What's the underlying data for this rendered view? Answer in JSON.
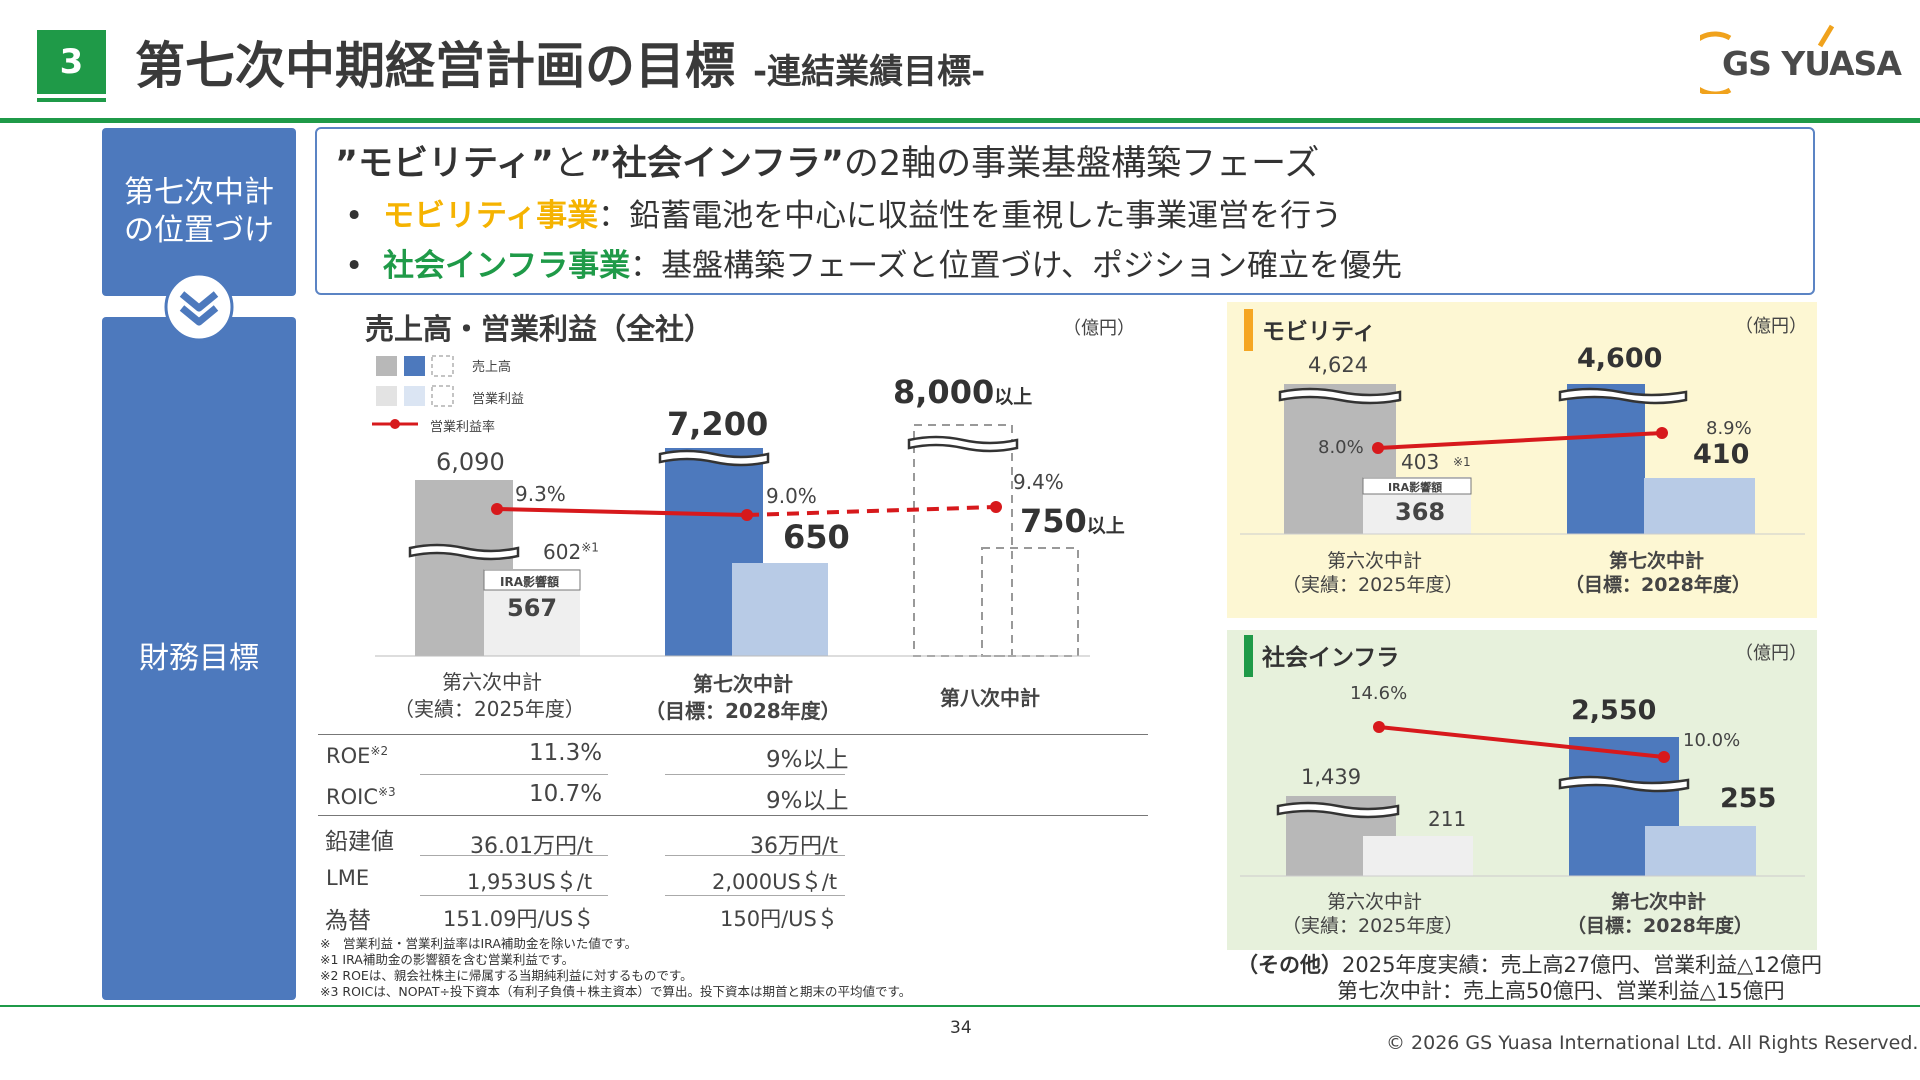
{
  "header": {
    "slide_number": "3",
    "title": "第七次中期経営計画の目標",
    "subtitle": "-連結業績目標-",
    "logo_text": "GS YUASA"
  },
  "sidebar": {
    "positioning_label": "第七次中計\nの位置づけ",
    "financial_label": "財務目標"
  },
  "positioning": {
    "title_q1": "”モビリティ”",
    "title_and": "と",
    "title_q2": "”社会インフラ”",
    "title_rest": "の2軸の事業基盤構築フェーズ",
    "bullet1_head": "モビリティ事業",
    "bullet1_body": "：鉛蓄電池を中心に収益性を重視した事業運営を行う",
    "bullet2_head": "社会インフラ事業",
    "bullet2_body": "：基盤構築フェーズと位置づけ、ポジション確立を優先"
  },
  "main_chart": {
    "title": "売上高・営業利益（全社）",
    "unit": "（億円）",
    "legend_sales": "売上高",
    "legend_op": "営業利益",
    "legend_margin": "営業利益率",
    "sixth_sales": "6,090",
    "sixth_margin": "9.3%",
    "sixth_op": "602",
    "sixth_op_note": "※1",
    "ira_label": "IRA影響額",
    "sixth_op_ex": "567",
    "seventh_sales": "7,200",
    "seventh_margin": "9.0%",
    "seventh_op": "650",
    "eighth_sales": "8,000",
    "eighth_sales_suffix": "以上",
    "eighth_margin": "9.4%",
    "eighth_op": "750",
    "eighth_op_suffix": "以上",
    "cat1_line1": "第六次中計",
    "cat1_line2": "（実績：2025年度）",
    "cat2_line1": "第七次中計",
    "cat2_line2": "（目標：2028年度）",
    "cat3_line1": "第八次中計"
  },
  "chart_data": [
    {
      "type": "bar",
      "title": "売上高・営業利益（全社）",
      "categories": [
        "第六次中計（実績：2025年度）",
        "第七次中計（目標：2028年度）",
        "第八次中計"
      ],
      "series": [
        {
          "name": "売上高",
          "values": [
            6090,
            7200,
            8000
          ]
        },
        {
          "name": "営業利益",
          "values": [
            602,
            650,
            750
          ]
        },
        {
          "name": "営業利益率",
          "values": [
            9.3,
            9.0,
            9.4
          ]
        }
      ],
      "unit": "（億円）"
    },
    {
      "type": "bar",
      "title": "モビリティ",
      "categories": [
        "第六次中計（実績：2025年度）",
        "第七次中計（目標：2028年度）"
      ],
      "series": [
        {
          "name": "売上高",
          "values": [
            4624,
            4600
          ]
        },
        {
          "name": "営業利益",
          "values": [
            403,
            410
          ]
        },
        {
          "name": "営業利益率",
          "values": [
            8.0,
            8.9
          ]
        }
      ],
      "unit": "（億円）"
    },
    {
      "type": "bar",
      "title": "社会インフラ",
      "categories": [
        "第六次中計（実績：2025年度）",
        "第七次中計（目標：2028年度）"
      ],
      "series": [
        {
          "name": "売上高",
          "values": [
            1439,
            2550
          ]
        },
        {
          "name": "営業利益",
          "values": [
            211,
            255
          ]
        },
        {
          "name": "営業利益率",
          "values": [
            14.6,
            10.0
          ]
        }
      ],
      "unit": "（億円）"
    }
  ],
  "metrics_table": {
    "rows": [
      {
        "label": "ROE",
        "note": "※2",
        "sixth": "11.3%",
        "seventh": "9%以上"
      },
      {
        "label": "ROIC",
        "note": "※3",
        "sixth": "10.7%",
        "seventh": "9%以上"
      },
      {
        "label": "鉛建値",
        "note": "",
        "sixth": "36.01万円/t",
        "seventh": "36万円/t"
      },
      {
        "label": "LME",
        "note": "",
        "sixth": "1,953US＄/t",
        "seventh": "2,000US＄/t"
      },
      {
        "label": "為替",
        "note": "",
        "sixth": "151.09円/US＄",
        "seventh": "150円/US＄"
      }
    ]
  },
  "footnotes": {
    "n0": "※　営業利益・営業利益率はIRA補助金を除いた値です。",
    "n1": "※1 IRA補助金の影響額を含む営業利益です。",
    "n2": "※2 ROEは、親会社株主に帰属する当期純利益に対するものです。",
    "n3": "※3 ROICは、NOPAT÷投下資本（有利子負債＋株主資本）で算出。投下資本は期首と期末の平均値です。"
  },
  "mobility": {
    "title": "モビリティ",
    "unit": "（億円）",
    "sixth_sales": "4,624",
    "sixth_margin": "8.0%",
    "sixth_op": "403",
    "sixth_op_note": "※1",
    "ira_label": "IRA影響額",
    "sixth_op_ex": "368",
    "seventh_sales": "4,600",
    "seventh_margin": "8.9%",
    "seventh_op": "410",
    "cat1_line1": "第六次中計",
    "cat1_line2": "（実績：2025年度）",
    "cat2_line1": "第七次中計",
    "cat2_line2": "（目標：2028年度）"
  },
  "infra": {
    "title": "社会インフラ",
    "unit": "（億円）",
    "sixth_sales": "1,439",
    "sixth_margin": "14.6%",
    "sixth_op": "211",
    "seventh_sales": "2,550",
    "seventh_margin": "10.0%",
    "seventh_op": "255",
    "cat1_line1": "第六次中計",
    "cat1_line2": "（実績：2025年度）",
    "cat2_line1": "第七次中計",
    "cat2_line2": "（目標：2028年度）"
  },
  "other": {
    "label": "（その他）",
    "line1": "2025年度実績：売上高27億円、営業利益△12億円",
    "line2": "第七次中計：売上高50億円、営業利益△15億円"
  },
  "footer": {
    "page_number": "34",
    "copyright": "© 2026 GS Yuasa International Ltd. All Rights Reserved."
  },
  "colors": {
    "green": "#1f9a48",
    "blue": "#4d79bd",
    "light_blue": "#b8cbe6",
    "gray": "#b8b8b8",
    "light_gray": "#e8e8e8",
    "red": "#d7191c",
    "mobility_yellow": "#f5b301"
  }
}
